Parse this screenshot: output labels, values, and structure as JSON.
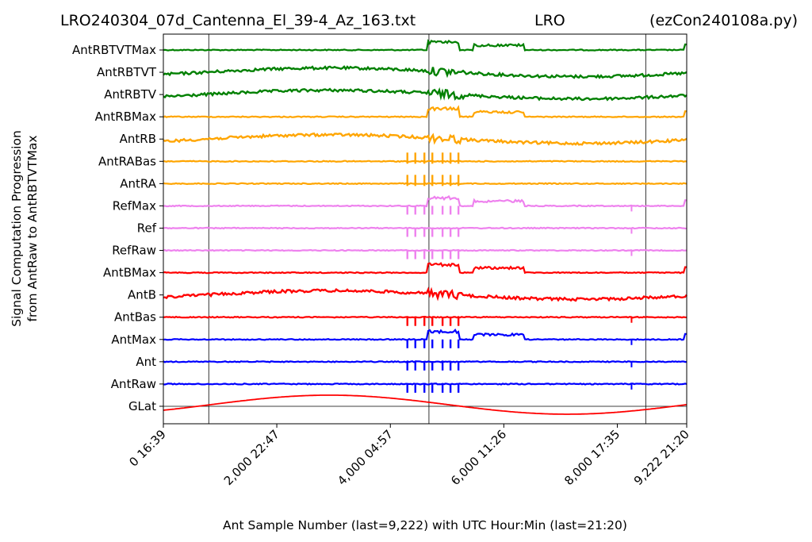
{
  "header": {
    "filename": "LRO240304_07d_Cantenna_El_39-4_Az_163.txt",
    "site": "LRO",
    "program": "(ezCon240108a.py)"
  },
  "chart_data": {
    "type": "line",
    "ylabel_line1": "Signal Computation Progression",
    "ylabel_line2": "from AntRaw to AntRBTVTMax",
    "xlabel": "Ant Sample Number (last=9,222) with UTC Hour:Min (last=21:20)",
    "xlim": [
      0,
      9222
    ],
    "x_ticks": [
      {
        "value": 0,
        "label": "0  16:39"
      },
      {
        "value": 1999,
        "label": "2,000  22:47"
      },
      {
        "value": 4000,
        "label": "4,000  04:57"
      },
      {
        "value": 5999,
        "label": "6,000  11:26"
      },
      {
        "value": 7999,
        "label": "8,000  17:35"
      },
      {
        "value": 9222,
        "label": "9,222  21:20"
      }
    ],
    "vertical_markers": [
      800,
      4680,
      8500
    ],
    "series": [
      {
        "name": "AntRBTVTMax",
        "color": "#008000",
        "style": "max-flat"
      },
      {
        "name": "AntRBTVT",
        "color": "#008000",
        "style": "wavy"
      },
      {
        "name": "AntRBTV",
        "color": "#008000",
        "style": "wavy"
      },
      {
        "name": "AntRBMax",
        "color": "#FFA500",
        "style": "max-flat"
      },
      {
        "name": "AntRB",
        "color": "#FFA500",
        "style": "wavy"
      },
      {
        "name": "AntRABas",
        "color": "#FFA500",
        "style": "flat-ticks"
      },
      {
        "name": "AntRA",
        "color": "#FFA500",
        "style": "flat-ticks"
      },
      {
        "name": "RefMax",
        "color": "#EE82EE",
        "style": "ref-max"
      },
      {
        "name": "Ref",
        "color": "#EE82EE",
        "style": "ref-flat"
      },
      {
        "name": "RefRaw",
        "color": "#EE82EE",
        "style": "ref-flat"
      },
      {
        "name": "AntBMax",
        "color": "#FF0000",
        "style": "max-flat"
      },
      {
        "name": "AntB",
        "color": "#FF0000",
        "style": "wavy"
      },
      {
        "name": "AntBas",
        "color": "#FF0000",
        "style": "flat-ticks"
      },
      {
        "name": "AntMax",
        "color": "#0000FF",
        "style": "ant-max"
      },
      {
        "name": "Ant",
        "color": "#0000FF",
        "style": "flat-ticks"
      },
      {
        "name": "AntRaw",
        "color": "#0000FF",
        "style": "flat-ticks"
      },
      {
        "name": "GLat",
        "color": "#FF0000",
        "style": "sine"
      }
    ]
  }
}
